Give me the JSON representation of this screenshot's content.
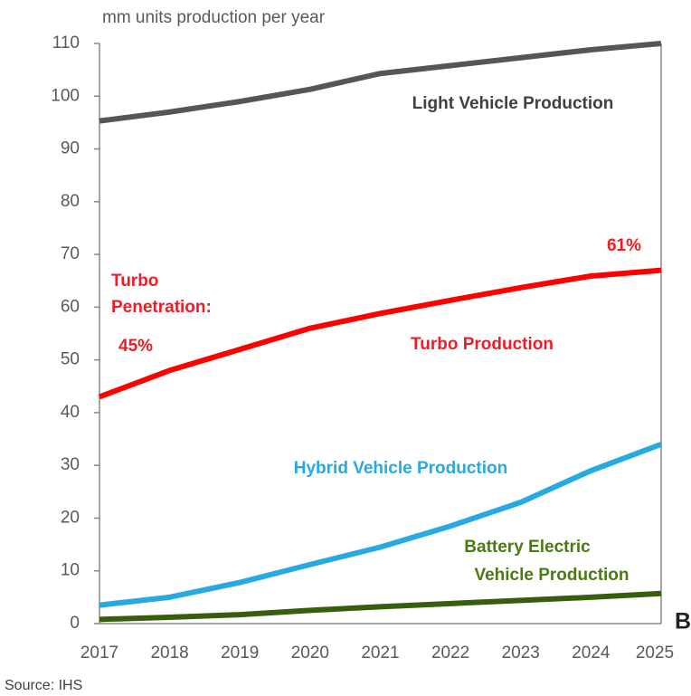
{
  "chart_data": {
    "type": "line",
    "y_axis_label": "mm units production per year",
    "source": "Source: IHS",
    "categories": [
      "2017",
      "2018",
      "2019",
      "2020",
      "2021",
      "2022",
      "2023",
      "2024",
      "2025"
    ],
    "series": [
      {
        "name": "Light Vehicle Production",
        "color": "#53575a",
        "values": [
          95.3,
          97,
          99,
          101.3,
          104.3,
          105.8,
          107.3,
          108.8,
          110
        ]
      },
      {
        "name": "Turbo Production",
        "color": "#ff0000",
        "values": [
          43,
          48,
          52,
          56,
          58.8,
          61.3,
          63.7,
          65.9,
          67
        ]
      },
      {
        "name": "Hybrid Vehicle Production",
        "color": "#27a9e1",
        "values": [
          3.5,
          5,
          7.8,
          11.2,
          14.5,
          18.5,
          23,
          29,
          34
        ]
      },
      {
        "color": "#385d0d",
        "values": [
          0.8,
          1.2,
          1.7,
          2.5,
          3.2,
          3.8,
          4.4,
          5,
          5.7
        ]
      }
    ],
    "annotations": [
      "61%",
      "Turbo",
      "Penetration:",
      "45%",
      "Battery Electric",
      "Vehicle Production",
      "B"
    ],
    "ylim": [
      0,
      110
    ],
    "yticks": [
      0,
      10,
      20,
      30,
      40,
      50,
      60,
      70,
      80,
      90,
      100,
      110
    ]
  }
}
